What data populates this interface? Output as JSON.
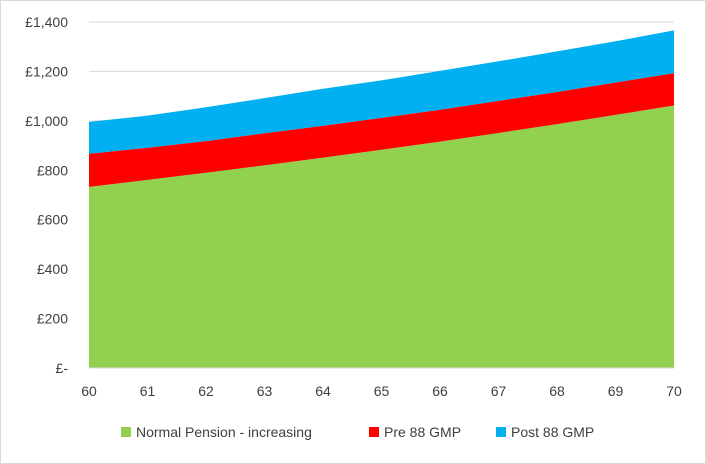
{
  "chart_data": {
    "type": "area",
    "stacked": true,
    "x": [
      60,
      61,
      62,
      63,
      64,
      65,
      66,
      67,
      68,
      69,
      70
    ],
    "x_tick_labels": [
      "60",
      "61",
      "62",
      "63",
      "64",
      "65",
      "66",
      "67",
      "68",
      "69",
      "70"
    ],
    "series": [
      {
        "name": "Normal Pension - increasing",
        "color": "#92d050",
        "values": [
          733,
          761,
          790,
          820,
          851,
          883,
          916,
          951,
          987,
          1024,
          1062
        ]
      },
      {
        "name": "Pre 88 GMP",
        "color": "#ff0000",
        "values": [
          134,
          130,
          128,
          130,
          129,
          129,
          129,
          130,
          130,
          131,
          131
        ]
      },
      {
        "name": "Post 88 GMP",
        "color": "#00b0f0",
        "values": [
          129,
          130,
          137,
          142,
          150,
          152,
          157,
          160,
          164,
          167,
          173
        ]
      }
    ],
    "ylim": [
      0,
      1400
    ],
    "y_ticks": [
      0,
      200,
      400,
      600,
      800,
      1000,
      1200,
      1400
    ],
    "y_tick_labels": [
      "£-",
      "£200",
      "£400",
      "£600",
      "£800",
      "£1,000",
      "£1,200",
      "£1,400"
    ],
    "grid": true,
    "legend_position": "bottom",
    "title": "",
    "xlabel": "",
    "ylabel": ""
  }
}
